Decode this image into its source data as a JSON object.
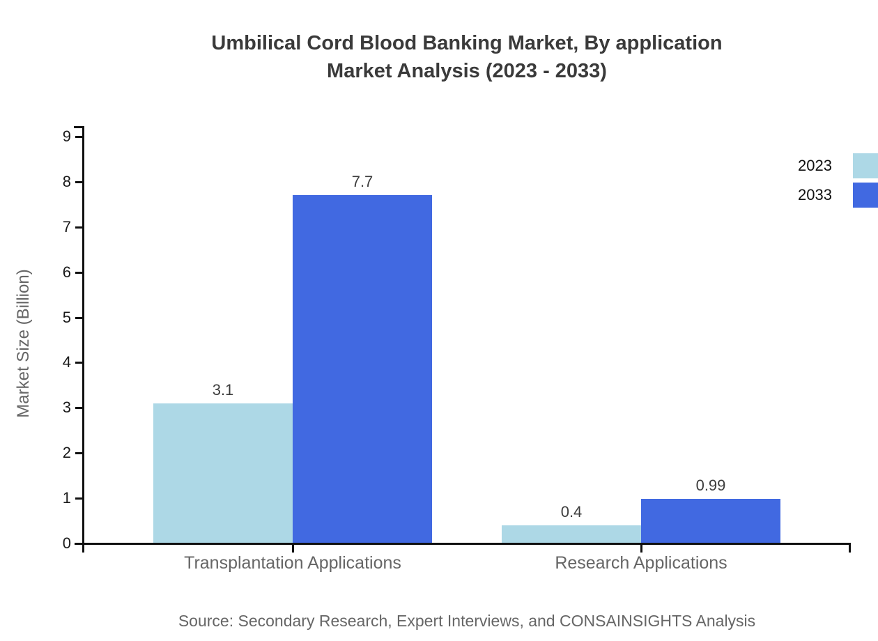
{
  "chart_data": {
    "type": "bar",
    "title": "Umbilical Cord Blood Banking Market, By application Market Analysis (2023 - 2033)",
    "title_lines": [
      "Umbilical Cord Blood Banking Market, By application",
      "Market Analysis (2023 - 2033)"
    ],
    "categories": [
      "Transplantation Applications",
      "Research Applications"
    ],
    "series": [
      {
        "name": "2023",
        "color": "#ADD8E6",
        "values": [
          3.1,
          0.4
        ]
      },
      {
        "name": "2033",
        "color": "#4169E1",
        "values": [
          7.7,
          0.99
        ]
      }
    ],
    "value_labels": [
      [
        "3.1",
        "0.4"
      ],
      [
        "7.7",
        "0.99"
      ]
    ],
    "xlabel": "",
    "ylabel": "Market Size (Billion)",
    "ylim": [
      0,
      9
    ],
    "yticks": [
      0,
      1,
      2,
      3,
      4,
      5,
      6,
      7,
      8,
      9
    ],
    "grid": false,
    "legend_position": "top-right",
    "source_note": "Source: Secondary Research, Expert Interviews, and CONSAINSIGHTS Analysis"
  },
  "colors": {
    "series_2023": "#ADD8E6",
    "series_2033": "#4169E1",
    "title_text": "#3a3a3a",
    "axis": "#111111",
    "tick_label_text": "#1a1a1a",
    "muted_text": "#666666",
    "value_label_text": "#3d3d3d",
    "background": "#ffffff"
  }
}
